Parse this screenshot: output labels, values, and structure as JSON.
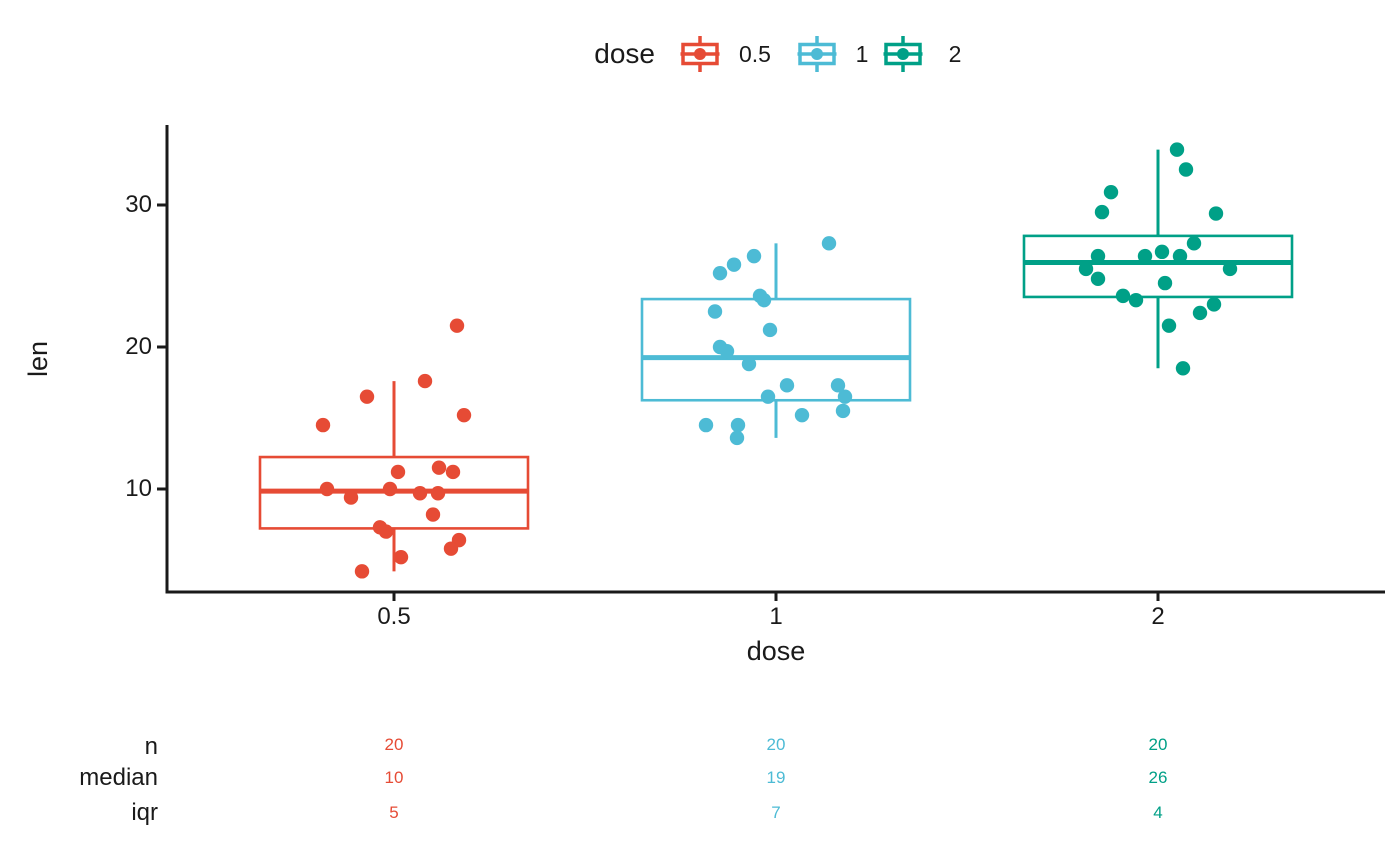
{
  "legend": {
    "title": "dose",
    "items": [
      {
        "label": "0.5",
        "color": "#E64B35"
      },
      {
        "label": "1",
        "color": "#4DBBD5"
      },
      {
        "label": "2",
        "color": "#00A087"
      }
    ]
  },
  "axes": {
    "y": {
      "title": "len",
      "ticks": [
        "30",
        "20",
        "10"
      ]
    },
    "x": {
      "title": "dose",
      "ticks": [
        "0.5",
        "1",
        "2"
      ]
    }
  },
  "stats_table": {
    "rows": [
      {
        "label": "n",
        "values": [
          "20",
          "20",
          "20"
        ]
      },
      {
        "label": "median",
        "values": [
          "10",
          "19",
          "26"
        ]
      },
      {
        "label": "iqr",
        "values": [
          "5",
          "7",
          "4"
        ]
      }
    ]
  },
  "chart_data": {
    "type": "boxplot",
    "title": "",
    "xlabel": "dose",
    "ylabel": "len",
    "categories": [
      "0.5",
      "1",
      "2"
    ],
    "ylim": [
      2.5,
      36
    ],
    "yticks": [
      10,
      20,
      30
    ],
    "legend_position": "top",
    "grid": false,
    "series": [
      {
        "name": "0.5",
        "color": "#E64B35",
        "n": 20,
        "whisker_low": 4.2,
        "q1": 7.225,
        "median": 9.85,
        "q3": 12.25,
        "whisker_high": 17.6,
        "iqr": 5,
        "points": [
          {
            "len": 21.5,
            "dx": 63
          },
          {
            "len": 17.6,
            "dx": 31
          },
          {
            "len": 16.5,
            "dx": -27
          },
          {
            "len": 15.2,
            "dx": 70
          },
          {
            "len": 14.5,
            "dx": -71
          },
          {
            "len": 11.5,
            "dx": 45
          },
          {
            "len": 11.2,
            "dx": 4
          },
          {
            "len": 11.2,
            "dx": 59
          },
          {
            "len": 10,
            "dx": -67
          },
          {
            "len": 10,
            "dx": -4
          },
          {
            "len": 9.7,
            "dx": 44
          },
          {
            "len": 9.7,
            "dx": 26
          },
          {
            "len": 9.4,
            "dx": -43
          },
          {
            "len": 8.2,
            "dx": 39
          },
          {
            "len": 7.3,
            "dx": -14
          },
          {
            "len": 7,
            "dx": -8
          },
          {
            "len": 6.4,
            "dx": 65
          },
          {
            "len": 5.8,
            "dx": 57
          },
          {
            "len": 5.2,
            "dx": 7
          },
          {
            "len": 4.2,
            "dx": -32
          }
        ]
      },
      {
        "name": "1",
        "color": "#4DBBD5",
        "n": 20,
        "whisker_low": 13.6,
        "q1": 16.25,
        "median": 19.25,
        "q3": 23.375,
        "whisker_high": 27.3,
        "iqr": 7,
        "points": [
          {
            "len": 27.3,
            "dx": 53
          },
          {
            "len": 26.4,
            "dx": -22
          },
          {
            "len": 25.8,
            "dx": -42
          },
          {
            "len": 25.2,
            "dx": -56
          },
          {
            "len": 23.6,
            "dx": -16
          },
          {
            "len": 23.3,
            "dx": -12
          },
          {
            "len": 22.5,
            "dx": -61
          },
          {
            "len": 21.2,
            "dx": -6
          },
          {
            "len": 20,
            "dx": -56
          },
          {
            "len": 19.7,
            "dx": -49
          },
          {
            "len": 18.8,
            "dx": -27
          },
          {
            "len": 17.3,
            "dx": 11
          },
          {
            "len": 17.3,
            "dx": 62
          },
          {
            "len": 16.5,
            "dx": -8
          },
          {
            "len": 16.5,
            "dx": 69
          },
          {
            "len": 15.5,
            "dx": 67
          },
          {
            "len": 15.2,
            "dx": 26
          },
          {
            "len": 14.5,
            "dx": -70
          },
          {
            "len": 14.5,
            "dx": -38
          },
          {
            "len": 13.6,
            "dx": -39
          }
        ]
      },
      {
        "name": "2",
        "color": "#00A087",
        "n": 20,
        "whisker_low": 18.5,
        "q1": 23.525,
        "median": 25.95,
        "q3": 27.825,
        "whisker_high": 33.9,
        "iqr": 4,
        "points": [
          {
            "len": 33.9,
            "dx": 19
          },
          {
            "len": 32.5,
            "dx": 28
          },
          {
            "len": 30.9,
            "dx": -47
          },
          {
            "len": 29.5,
            "dx": -56
          },
          {
            "len": 29.4,
            "dx": 58
          },
          {
            "len": 27.3,
            "dx": 36
          },
          {
            "len": 26.7,
            "dx": 4
          },
          {
            "len": 26.4,
            "dx": -13
          },
          {
            "len": 26.4,
            "dx": 22
          },
          {
            "len": 26.4,
            "dx": -60
          },
          {
            "len": 25.5,
            "dx": -72
          },
          {
            "len": 25.5,
            "dx": 72
          },
          {
            "len": 24.8,
            "dx": -60
          },
          {
            "len": 24.5,
            "dx": 7
          },
          {
            "len": 23.6,
            "dx": -35
          },
          {
            "len": 23.3,
            "dx": -22
          },
          {
            "len": 23,
            "dx": 56
          },
          {
            "len": 22.4,
            "dx": 42
          },
          {
            "len": 21.5,
            "dx": 11
          },
          {
            "len": 18.5,
            "dx": 25
          }
        ]
      }
    ]
  }
}
